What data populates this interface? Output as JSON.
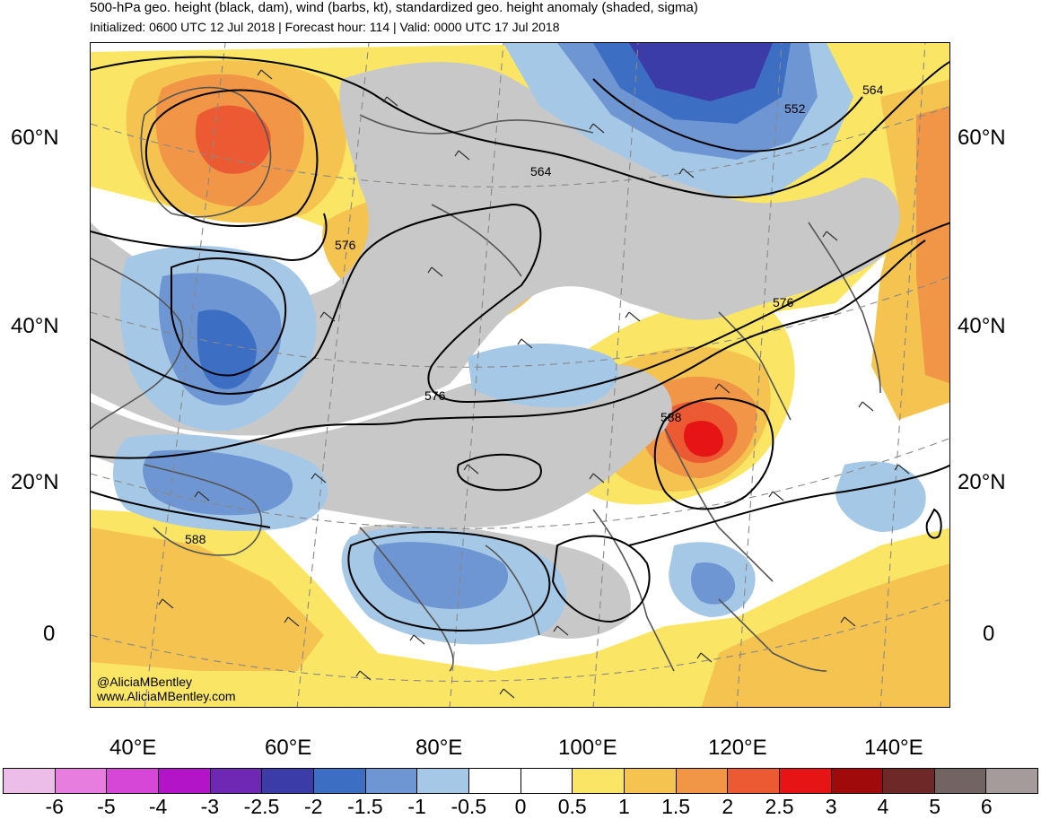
{
  "header": {
    "title": "500-hPa geo. height (black, dam), wind (barbs, kt), standardized geo. height anomaly (shaded, sigma)",
    "subtitle": "Initialized: 0600 UTC 12 Jul 2018 | Forecast hour: 114 | Valid: 0000 UTC 17 Jul 2018"
  },
  "map": {
    "lat_labels": [
      "60°N",
      "40°N",
      "20°N",
      "0"
    ],
    "lon_labels": [
      "40°E",
      "60°E",
      "80°E",
      "100°E",
      "120°E",
      "140°E"
    ],
    "contour_labels": [
      "564",
      "552",
      "564",
      "576",
      "576",
      "576",
      "588",
      "588"
    ],
    "credit_handle": "@AliciaMBentley",
    "credit_site": "www.AliciaMBentley.com"
  },
  "colorbar": {
    "colors": [
      "#ebbde8",
      "#e87de0",
      "#d647d8",
      "#b414c8",
      "#6e28b4",
      "#3c3ca8",
      "#3c6ec3",
      "#6e96d2",
      "#a5c8e6",
      "#ffffff",
      "#ffffff",
      "#fae664",
      "#f5c350",
      "#f09646",
      "#eb5a32",
      "#e61414",
      "#a00a0a",
      "#6e2828",
      "#736464",
      "#a59b9b"
    ],
    "ticks": [
      "-6",
      "-5",
      "-4",
      "-3",
      "-2.5",
      "-2",
      "-1.5",
      "-1",
      "-0.5",
      "0",
      "0.5",
      "1",
      "1.5",
      "2",
      "2.5",
      "3",
      "4",
      "5",
      "6"
    ]
  }
}
